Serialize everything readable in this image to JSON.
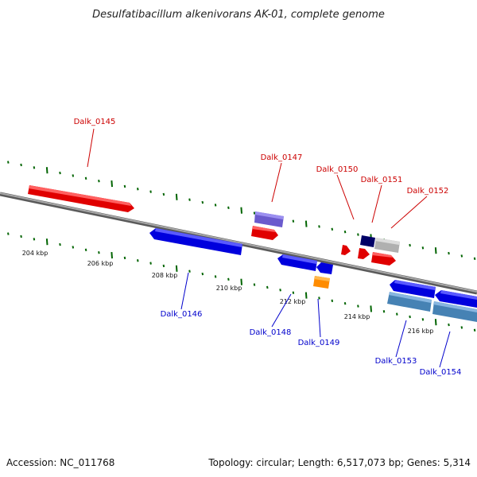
{
  "title": "Desulfatibacillum alkenivorans AK-01, complete genome",
  "footer": {
    "accession": "Accession: NC_011768",
    "topology": "Topology: circular; Length: 6,517,073 bp; Genes: 5,314"
  },
  "colors": {
    "forward_label": "#cc0000",
    "reverse_label": "#0000cc",
    "backbone": "#808080",
    "tick": "#006400"
  },
  "scale_labels": [
    "204 kbp",
    "206 kbp",
    "208 kbp",
    "210 kbp",
    "212 kbp",
    "214 kbp",
    "216 kbp"
  ],
  "genes": [
    {
      "label": "Dalk_0145",
      "strand": "forward"
    },
    {
      "label": "Dalk_0146",
      "strand": "reverse"
    },
    {
      "label": "Dalk_0147",
      "strand": "forward"
    },
    {
      "label": "Dalk_0148",
      "strand": "reverse"
    },
    {
      "label": "Dalk_0149",
      "strand": "reverse"
    },
    {
      "label": "Dalk_0150",
      "strand": "forward"
    },
    {
      "label": "Dalk_0151",
      "strand": "forward"
    },
    {
      "label": "Dalk_0152",
      "strand": "forward"
    },
    {
      "label": "Dalk_0153",
      "strand": "reverse"
    },
    {
      "label": "Dalk_0154",
      "strand": "reverse"
    }
  ]
}
